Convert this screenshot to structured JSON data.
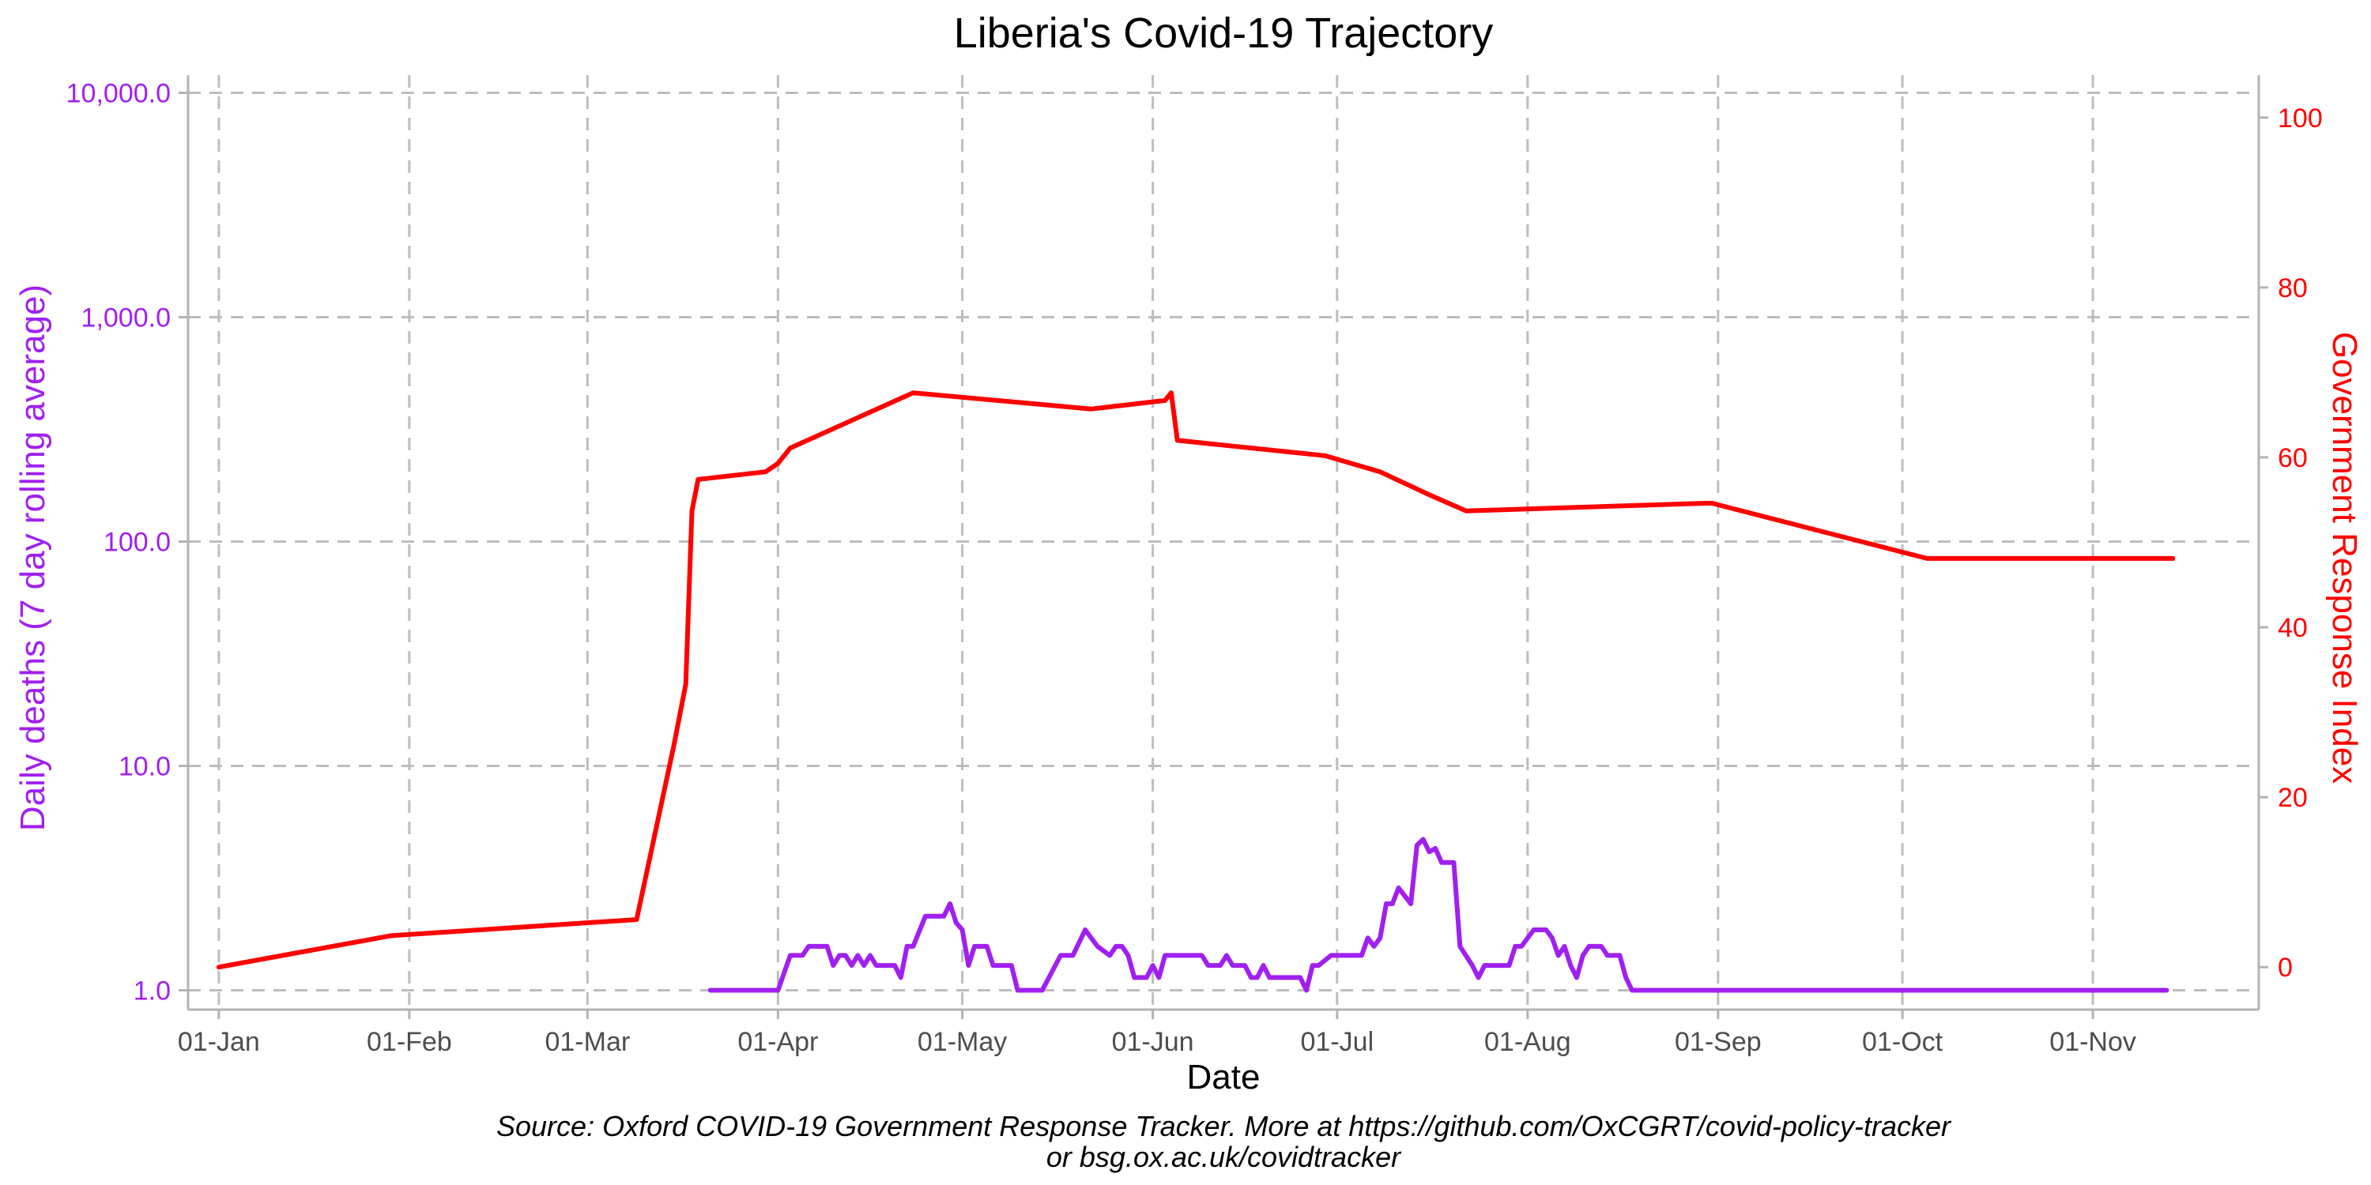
{
  "chart_data": {
    "type": "line",
    "title": "Liberia's Covid-19 Trajectory",
    "xlabel": "Date",
    "ylabel_left": "Daily deaths (7 day rolling average)",
    "ylabel_right": "Government Response Index",
    "caption_line1": "Source: Oxford COVID-19 Government Response Tracker. More at https://github.com/OxCGRT/covid-policy-tracker",
    "caption_line2": "or bsg.ox.ac.uk/covidtracker",
    "grid": true,
    "x_range": [
      "2019-12-27",
      "2020-11-28"
    ],
    "x_ticks": [
      {
        "date": "2020-01-01",
        "label": "01-Jan"
      },
      {
        "date": "2020-02-01",
        "label": "01-Feb"
      },
      {
        "date": "2020-03-01",
        "label": "01-Mar"
      },
      {
        "date": "2020-04-01",
        "label": "01-Apr"
      },
      {
        "date": "2020-05-01",
        "label": "01-May"
      },
      {
        "date": "2020-06-01",
        "label": "01-Jun"
      },
      {
        "date": "2020-07-01",
        "label": "01-Jul"
      },
      {
        "date": "2020-08-01",
        "label": "01-Aug"
      },
      {
        "date": "2020-09-01",
        "label": "01-Sep"
      },
      {
        "date": "2020-10-01",
        "label": "01-Oct"
      },
      {
        "date": "2020-11-01",
        "label": "01-Nov"
      }
    ],
    "y_left": {
      "scale": "log10",
      "range": [
        0.82,
        12000
      ],
      "ticks": [
        1,
        10,
        100,
        1000,
        10000
      ],
      "tick_labels": [
        "1.0",
        "10.0",
        "100.0",
        "1,000.0",
        "10,000.0"
      ],
      "color": "#a020f0"
    },
    "y_right": {
      "scale": "linear",
      "range": [
        -5,
        105
      ],
      "ticks": [
        0,
        20,
        40,
        60,
        80,
        100
      ],
      "tick_labels": [
        "0",
        "20",
        "40",
        "60",
        "80",
        "100"
      ],
      "color": "#ff0000"
    },
    "series": [
      {
        "name": "Government Response Index",
        "axis": "right",
        "color": "#ff0000",
        "step": true,
        "points": [
          [
            "2020-01-01",
            0
          ],
          [
            "2020-01-29",
            3.7
          ],
          [
            "2020-03-09",
            5.6
          ],
          [
            "2020-03-15",
            25.9
          ],
          [
            "2020-03-17",
            33.3
          ],
          [
            "2020-03-18",
            53.7
          ],
          [
            "2020-03-19",
            57.4
          ],
          [
            "2020-03-30",
            58.3
          ],
          [
            "2020-04-01",
            59.3
          ],
          [
            "2020-04-03",
            61.1
          ],
          [
            "2020-04-23",
            67.6
          ],
          [
            "2020-05-22",
            65.7
          ],
          [
            "2020-06-03",
            66.7
          ],
          [
            "2020-06-04",
            67.6
          ],
          [
            "2020-06-05",
            62.0
          ],
          [
            "2020-06-29",
            60.2
          ],
          [
            "2020-07-08",
            58.3
          ],
          [
            "2020-07-16",
            55.6
          ],
          [
            "2020-07-22",
            53.7
          ],
          [
            "2020-08-30",
            54.6
          ],
          [
            "2020-08-31",
            54.6
          ],
          [
            "2020-10-05",
            48.1
          ],
          [
            "2020-11-14",
            48.1
          ]
        ]
      },
      {
        "name": "Daily deaths (7 day rolling average)",
        "axis": "left",
        "color": "#a020f0",
        "step": false,
        "points": [
          [
            "2020-03-21",
            1.0
          ],
          [
            "2020-04-01",
            1.0
          ],
          [
            "2020-04-03",
            1.43
          ],
          [
            "2020-04-05",
            1.43
          ],
          [
            "2020-04-06",
            1.57
          ],
          [
            "2020-04-09",
            1.57
          ],
          [
            "2020-04-10",
            1.29
          ],
          [
            "2020-04-11",
            1.43
          ],
          [
            "2020-04-12",
            1.43
          ],
          [
            "2020-04-13",
            1.29
          ],
          [
            "2020-04-14",
            1.43
          ],
          [
            "2020-04-15",
            1.29
          ],
          [
            "2020-04-16",
            1.43
          ],
          [
            "2020-04-17",
            1.29
          ],
          [
            "2020-04-20",
            1.29
          ],
          [
            "2020-04-21",
            1.14
          ],
          [
            "2020-04-22",
            1.57
          ],
          [
            "2020-04-23",
            1.57
          ],
          [
            "2020-04-25",
            2.14
          ],
          [
            "2020-04-28",
            2.14
          ],
          [
            "2020-04-29",
            2.43
          ],
          [
            "2020-04-30",
            2.0
          ],
          [
            "2020-05-01",
            1.86
          ],
          [
            "2020-05-02",
            1.29
          ],
          [
            "2020-05-03",
            1.57
          ],
          [
            "2020-05-05",
            1.57
          ],
          [
            "2020-05-06",
            1.29
          ],
          [
            "2020-05-09",
            1.29
          ],
          [
            "2020-05-10",
            1.0
          ],
          [
            "2020-05-14",
            1.0
          ],
          [
            "2020-05-17",
            1.43
          ],
          [
            "2020-05-19",
            1.43
          ],
          [
            "2020-05-21",
            1.86
          ],
          [
            "2020-05-23",
            1.57
          ],
          [
            "2020-05-25",
            1.43
          ],
          [
            "2020-05-26",
            1.57
          ],
          [
            "2020-05-27",
            1.57
          ],
          [
            "2020-05-28",
            1.43
          ],
          [
            "2020-05-29",
            1.14
          ],
          [
            "2020-05-31",
            1.14
          ],
          [
            "2020-06-01",
            1.29
          ],
          [
            "2020-06-02",
            1.14
          ],
          [
            "2020-06-03",
            1.43
          ],
          [
            "2020-06-09",
            1.43
          ],
          [
            "2020-06-10",
            1.29
          ],
          [
            "2020-06-12",
            1.29
          ],
          [
            "2020-06-13",
            1.43
          ],
          [
            "2020-06-14",
            1.29
          ],
          [
            "2020-06-16",
            1.29
          ],
          [
            "2020-06-17",
            1.14
          ],
          [
            "2020-06-18",
            1.14
          ],
          [
            "2020-06-19",
            1.29
          ],
          [
            "2020-06-20",
            1.14
          ],
          [
            "2020-06-25",
            1.14
          ],
          [
            "2020-06-26",
            1.0
          ],
          [
            "2020-06-27",
            1.29
          ],
          [
            "2020-06-28",
            1.29
          ],
          [
            "2020-06-30",
            1.43
          ],
          [
            "2020-07-05",
            1.43
          ],
          [
            "2020-07-06",
            1.71
          ],
          [
            "2020-07-07",
            1.57
          ],
          [
            "2020-07-08",
            1.71
          ],
          [
            "2020-07-09",
            2.43
          ],
          [
            "2020-07-10",
            2.43
          ],
          [
            "2020-07-11",
            2.86
          ],
          [
            "2020-07-13",
            2.43
          ],
          [
            "2020-07-14",
            4.43
          ],
          [
            "2020-07-15",
            4.71
          ],
          [
            "2020-07-16",
            4.14
          ],
          [
            "2020-07-17",
            4.29
          ],
          [
            "2020-07-18",
            3.71
          ],
          [
            "2020-07-20",
            3.71
          ],
          [
            "2020-07-21",
            1.57
          ],
          [
            "2020-07-23",
            1.29
          ],
          [
            "2020-07-24",
            1.14
          ],
          [
            "2020-07-25",
            1.29
          ],
          [
            "2020-07-29",
            1.29
          ],
          [
            "2020-07-30",
            1.57
          ],
          [
            "2020-07-31",
            1.57
          ],
          [
            "2020-08-02",
            1.86
          ],
          [
            "2020-08-04",
            1.86
          ],
          [
            "2020-08-05",
            1.71
          ],
          [
            "2020-08-06",
            1.43
          ],
          [
            "2020-08-07",
            1.57
          ],
          [
            "2020-08-08",
            1.29
          ],
          [
            "2020-08-09",
            1.14
          ],
          [
            "2020-08-10",
            1.43
          ],
          [
            "2020-08-11",
            1.57
          ],
          [
            "2020-08-13",
            1.57
          ],
          [
            "2020-08-14",
            1.43
          ],
          [
            "2020-08-16",
            1.43
          ],
          [
            "2020-08-17",
            1.14
          ],
          [
            "2020-08-18",
            1.0
          ],
          [
            "2020-11-13",
            1.0
          ]
        ]
      }
    ]
  }
}
